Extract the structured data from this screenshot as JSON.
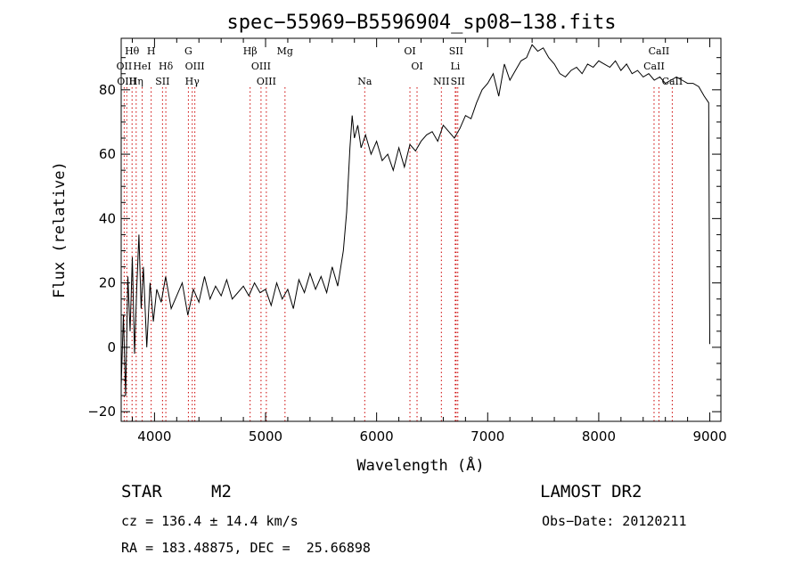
{
  "chart_data": {
    "type": "line",
    "title": "spec−55969−B5596904_sp08−138.fits",
    "xlabel": "Wavelength (Å)",
    "ylabel": "Flux (relative)",
    "xlim": [
      3700,
      9100
    ],
    "ylim": [
      -23,
      96
    ],
    "xticks": [
      4000,
      5000,
      6000,
      7000,
      8000,
      9000
    ],
    "yticks": [
      -20,
      0,
      20,
      40,
      60,
      80
    ],
    "ytick_labels": [
      "−20",
      "0",
      "20",
      "40",
      "60",
      "80"
    ],
    "grid": false,
    "series": [
      {
        "x": [
          3700,
          3720,
          3740,
          3760,
          3780,
          3800,
          3820,
          3840,
          3860,
          3880,
          3900,
          3930,
          3960,
          3990,
          4020,
          4060,
          4100,
          4150,
          4200,
          4250,
          4300,
          4350,
          4400,
          4450,
          4500,
          4550,
          4600,
          4650,
          4700,
          4750,
          4800,
          4850,
          4900,
          4950,
          5000,
          5050,
          5100,
          5150,
          5200,
          5250,
          5300,
          5350,
          5400,
          5450,
          5500,
          5550,
          5600,
          5650,
          5700,
          5730,
          5760,
          5780,
          5800,
          5830,
          5860,
          5900,
          5950,
          6000,
          6050,
          6100,
          6150,
          6200,
          6250,
          6300,
          6350,
          6400,
          6450,
          6500,
          6550,
          6600,
          6650,
          6700,
          6750,
          6800,
          6850,
          6900,
          6950,
          7000,
          7050,
          7100,
          7150,
          7200,
          7250,
          7300,
          7350,
          7400,
          7450,
          7500,
          7550,
          7600,
          7650,
          7700,
          7750,
          7800,
          7850,
          7900,
          7950,
          8000,
          8050,
          8100,
          8150,
          8200,
          8250,
          8300,
          8350,
          8400,
          8450,
          8500,
          8550,
          8600,
          8650,
          8700,
          8750,
          8800,
          8850,
          8900,
          8950,
          8990,
          9000
        ],
        "y": [
          -12,
          10,
          -15,
          22,
          5,
          28,
          -2,
          18,
          35,
          12,
          25,
          0,
          20,
          8,
          18,
          14,
          22,
          12,
          16,
          20,
          10,
          18,
          14,
          22,
          15,
          19,
          16,
          21,
          15,
          17,
          19,
          16,
          20,
          17,
          18,
          13,
          20,
          15,
          18,
          12,
          21,
          17,
          23,
          18,
          22,
          17,
          25,
          19,
          30,
          42,
          62,
          72,
          65,
          69,
          62,
          66,
          60,
          64,
          58,
          60,
          55,
          62,
          56,
          63,
          61,
          64,
          66,
          67,
          64,
          69,
          67,
          65,
          68,
          72,
          71,
          76,
          80,
          82,
          85,
          78,
          88,
          83,
          86,
          89,
          90,
          94,
          92,
          93,
          90,
          88,
          85,
          84,
          86,
          87,
          85,
          88,
          87,
          89,
          88,
          87,
          89,
          86,
          88,
          85,
          86,
          84,
          85,
          83,
          84,
          82,
          83,
          84,
          83,
          82,
          82,
          81,
          78,
          76,
          1
        ]
      }
    ],
    "spectral_lines": [
      {
        "label": "Hθ",
        "wl": 3798,
        "row": 0
      },
      {
        "label": "H",
        "wl": 3970,
        "row": 0
      },
      {
        "label": "G",
        "wl": 4305,
        "row": 0
      },
      {
        "label": "Hβ",
        "wl": 4861,
        "row": 0
      },
      {
        "label": "Mg",
        "wl": 5175,
        "row": 0
      },
      {
        "label": "OI",
        "wl": 6300,
        "row": 0
      },
      {
        "label": "SII",
        "wl": 6716,
        "row": 0
      },
      {
        "label": "CaII",
        "wl": 8542,
        "row": 0
      },
      {
        "label": "OII",
        "wl": 3727,
        "row": 1
      },
      {
        "label": "HeI",
        "wl": 3889,
        "row": 1
      },
      {
        "label": "Hδ",
        "wl": 4102,
        "row": 1
      },
      {
        "label": "OIII",
        "wl": 4363,
        "row": 1
      },
      {
        "label": "OIII",
        "wl": 4959,
        "row": 1
      },
      {
        "label": "OI",
        "wl": 6364,
        "row": 1
      },
      {
        "label": "Li",
        "wl": 6708,
        "row": 1
      },
      {
        "label": "CaII",
        "wl": 8498,
        "row": 1
      },
      {
        "label": "OIII",
        "wl": 3750,
        "row": 2
      },
      {
        "label": "Hη",
        "wl": 3835,
        "row": 2
      },
      {
        "label": "SII",
        "wl": 4072,
        "row": 2
      },
      {
        "label": "Hγ",
        "wl": 4340,
        "row": 2
      },
      {
        "label": "OIII",
        "wl": 5007,
        "row": 2
      },
      {
        "label": "Na",
        "wl": 5893,
        "row": 2
      },
      {
        "label": "NII",
        "wl": 6583,
        "row": 2
      },
      {
        "label": "SII",
        "wl": 6731,
        "row": 2
      },
      {
        "label": "CaII",
        "wl": 8662,
        "row": 2
      }
    ]
  },
  "info": {
    "class_label": "STAR",
    "subclass": "M2",
    "survey": "LAMOST DR2",
    "cz": "cz = 136.4 ± 14.4 km/s",
    "obs_date": "Obs−Date: 20120211",
    "radec": "RA = 183.48875, DEC =  25.66898"
  }
}
